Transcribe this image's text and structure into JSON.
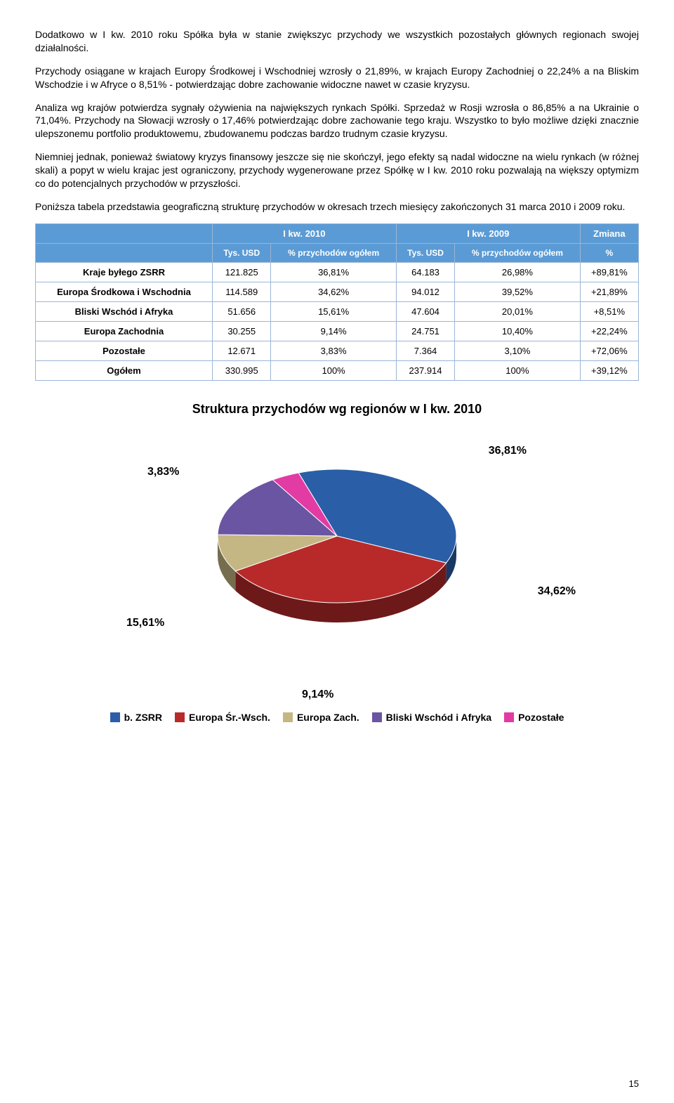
{
  "paragraphs": {
    "p1": "Dodatkowo w I kw. 2010 roku Spółka była w stanie zwiększyc przychody we wszystkich pozostałych głównych regionach swojej działalności.",
    "p2": "Przychody osiągane w krajach Europy Środkowej i Wschodniej wzrosły o 21,89%, w krajach Europy Zachodniej o 22,24% a na Bliskim Wschodzie i w Afryce o 8,51% - potwierdzając dobre zachowanie widoczne nawet w czasie kryzysu.",
    "p3": "Analiza wg krajów potwierdza sygnały ożywienia na największych rynkach Spółki. Sprzedaż w Rosji wzrosła o 86,85% a na Ukrainie o 71,04%. Przychody na Słowacji wzrosły o 17,46% potwierdzając dobre zachowanie tego kraju. Wszystko to było możliwe dzięki znacznie ulepszonemu portfolio produktowemu, zbudowanemu podczas bardzo trudnym czasie kryzysu.",
    "p4": "Niemniej jednak, ponieważ światowy kryzys finansowy jeszcze się nie skończył, jego efekty są nadal widoczne na wielu rynkach (w różnej skali) a popyt w wielu krajac jest ograniczony, przychody wygenerowane przez Spółkę w I kw. 2010 roku pozwalają na większy optymizm co do potencjalnych przychodów w przyszłości.",
    "p5": "Poniższa tabela przedstawia geograficzną strukturę przychodów w okresach trzech miesięcy zakończonych 31 marca 2010 i 2009 roku."
  },
  "table": {
    "header1": {
      "blank": "",
      "c1": "I kw. 2010",
      "c2": "I kw. 2009",
      "c3": "Zmiana"
    },
    "header2": {
      "blank": "",
      "a": "Tys. USD",
      "b": "% przychodów ogółem",
      "c": "Tys. USD",
      "d": "% przychodów ogółem",
      "e": "%"
    },
    "rows": [
      {
        "label": "Kraje byłego ZSRR",
        "v1": "121.825",
        "v2": "36,81%",
        "v3": "64.183",
        "v4": "26,98%",
        "v5": "+89,81%"
      },
      {
        "label": "Europa Środkowa i Wschodnia",
        "v1": "114.589",
        "v2": "34,62%",
        "v3": "94.012",
        "v4": "39,52%",
        "v5": "+21,89%"
      },
      {
        "label": "Bliski Wschód i Afryka",
        "v1": "51.656",
        "v2": "15,61%",
        "v3": "47.604",
        "v4": "20,01%",
        "v5": "+8,51%"
      },
      {
        "label": "Europa Zachodnia",
        "v1": "30.255",
        "v2": "9,14%",
        "v3": "24.751",
        "v4": "10,40%",
        "v5": "+22,24%"
      },
      {
        "label": "Pozostałe",
        "v1": "12.671",
        "v2": "3,83%",
        "v3": "7.364",
        "v4": "3,10%",
        "v5": "+72,06%"
      },
      {
        "label": "Ogółem",
        "v1": "330.995",
        "v2": "100%",
        "v3": "237.914",
        "v4": "100%",
        "v5": "+39,12%"
      }
    ]
  },
  "chart": {
    "title": "Struktura przychodów wg regionów w I kw. 2010",
    "type": "pie-3d",
    "slices": [
      {
        "label": "b. ZSRR",
        "value": 36.81,
        "text": "36,81%",
        "color": "#2a5ea7"
      },
      {
        "label": "Europa Śr.-Wsch.",
        "value": 34.62,
        "text": "34,62%",
        "color": "#b82a2a"
      },
      {
        "label": "Europa Zach.",
        "value": 9.14,
        "text": "9,14%",
        "color": "#c5b783"
      },
      {
        "label": "Bliski Wschód i Afryka",
        "value": 15.61,
        "text": "15,61%",
        "color": "#6a55a3"
      },
      {
        "label": "Pozostałe",
        "value": 3.83,
        "text": "3,83%",
        "color": "#e23ba3"
      }
    ],
    "background_color": "#ffffff",
    "legend_position": "bottom",
    "title_fontsize": 18,
    "label_fontsize": 16,
    "callouts": {
      "c0": "36,81%",
      "c1": "34,62%",
      "c2": "9,14%",
      "c3": "15,61%",
      "c4": "3,83%"
    }
  },
  "page_number": "15"
}
